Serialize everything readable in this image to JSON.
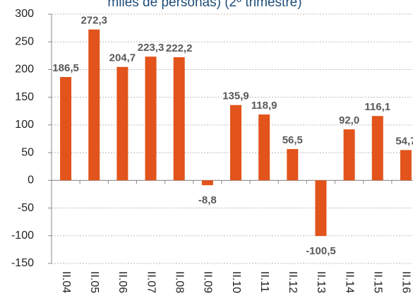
{
  "chart_data": {
    "type": "bar",
    "title": "miles de personas) (2º trimestre)",
    "categories": [
      "II.04",
      "II.05",
      "II.06",
      "II.07",
      "II.08",
      "II.09",
      "II.10",
      "II.11",
      "II.12",
      "II.13",
      "II.14",
      "II.15",
      "II.16"
    ],
    "values": [
      186.5,
      272.3,
      204.7,
      223.3,
      222.2,
      -8.8,
      135.9,
      118.9,
      56.5,
      -100.5,
      92.0,
      116.1,
      54.7
    ],
    "value_labels": [
      "186,5",
      "272,3",
      "204,7",
      "223,3",
      "222,2",
      "-8,8",
      "135,9",
      "118,9",
      "56,5",
      "-100,5",
      "92,0",
      "116,1",
      "54,7"
    ],
    "color": "#e2541b",
    "ylim": [
      -150,
      300
    ],
    "yticks": [
      -150,
      -100,
      -50,
      0,
      50,
      100,
      150,
      200,
      250,
      300
    ],
    "grid": true
  }
}
